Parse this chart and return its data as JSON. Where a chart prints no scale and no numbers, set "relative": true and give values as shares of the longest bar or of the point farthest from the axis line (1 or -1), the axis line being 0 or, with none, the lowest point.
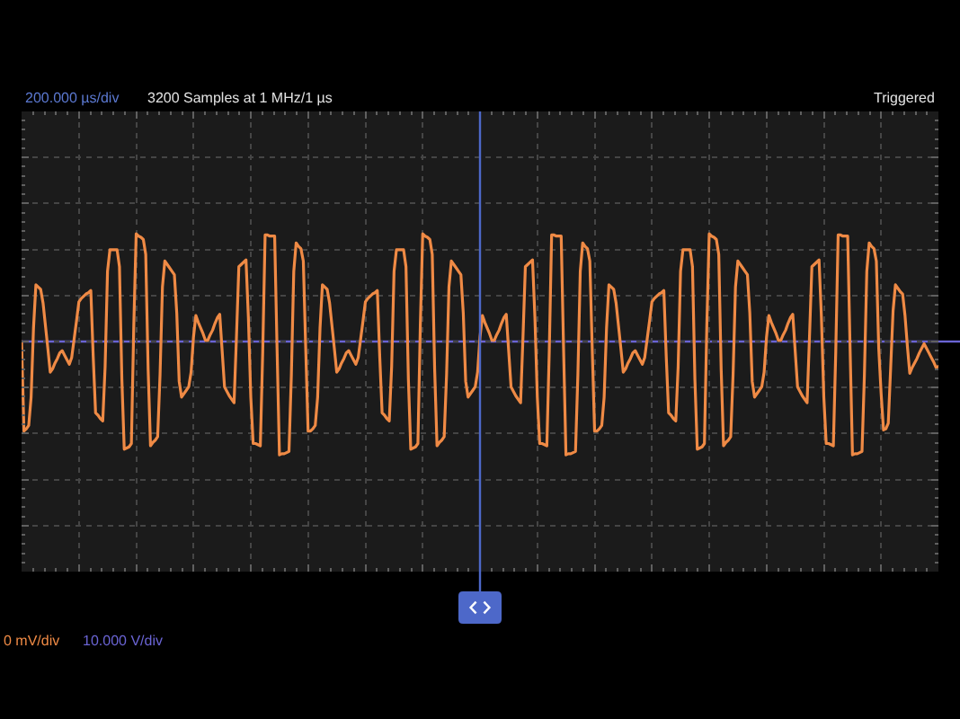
{
  "chart_data": {
    "type": "line",
    "categories": [
      null,
      null,
      null,
      null,
      null,
      null,
      null,
      null,
      null,
      null,
      null,
      null,
      null,
      null,
      null,
      null,
      null,
      null,
      null,
      null,
      null,
      null,
      null,
      null,
      null,
      null,
      null,
      null,
      null,
      null,
      null,
      null,
      null,
      null,
      null,
      null,
      null,
      null,
      null,
      null,
      null,
      null,
      null,
      null,
      null,
      null,
      null,
      null,
      null,
      null,
      null,
      null,
      null,
      null,
      null,
      null,
      null,
      null,
      null,
      null,
      null,
      null,
      null,
      null,
      null,
      null,
      null,
      null,
      null,
      null,
      null,
      null,
      null,
      null,
      null,
      null,
      null,
      null,
      null,
      null,
      null,
      null,
      null,
      null,
      null,
      null,
      null,
      null,
      null,
      null,
      null,
      null,
      null,
      null,
      null,
      null,
      null,
      null,
      null,
      null,
      null,
      null,
      null,
      null,
      null,
      null,
      null,
      null,
      null,
      null,
      null,
      null,
      null,
      null,
      null,
      null,
      null,
      null,
      null,
      null,
      null,
      null,
      null,
      null,
      null,
      null,
      null,
      null,
      null,
      null,
      null,
      null,
      null,
      null,
      null,
      null,
      null,
      null,
      null,
      null,
      null,
      null,
      null,
      null,
      null,
      null,
      null,
      null,
      null,
      null,
      null,
      null,
      null,
      null,
      null,
      null,
      null,
      null,
      null,
      null,
      null,
      null,
      null,
      null,
      null,
      null,
      null,
      null,
      null,
      null,
      null,
      null,
      null,
      null,
      null,
      null,
      null,
      null,
      null,
      null,
      null,
      null,
      null,
      null,
      null,
      null,
      null,
      null,
      null,
      null,
      null,
      null,
      null,
      null,
      null,
      null,
      null,
      null,
      null,
      null,
      null,
      null,
      null,
      null,
      null,
      null,
      null,
      null,
      null,
      null,
      null,
      null,
      null,
      null,
      null,
      null,
      null,
      null,
      null,
      null,
      null,
      null,
      null,
      null,
      null,
      null,
      null,
      null,
      null,
      null,
      null,
      null,
      null,
      null,
      null,
      null,
      null,
      null,
      null,
      null,
      null,
      null,
      null,
      null,
      null,
      null,
      null,
      null,
      null,
      null,
      null,
      null,
      null,
      null,
      null,
      null,
      null,
      null,
      null,
      null,
      null,
      null,
      null,
      null,
      null,
      null,
      null,
      null,
      null,
      null,
      null,
      null,
      null,
      null,
      null,
      null,
      null,
      null,
      null,
      null,
      null,
      null,
      null,
      null,
      null,
      null,
      null,
      null,
      null,
      null,
      null,
      null,
      null,
      null,
      null,
      null,
      null,
      null,
      null,
      null,
      null,
      null,
      null,
      null,
      null,
      null,
      null,
      null,
      null,
      null,
      null,
      null,
      null,
      null,
      null,
      null,
      null,
      null,
      null,
      null,
      null,
      null,
      null,
      null,
      null,
      null,
      null,
      null,
      null,
      null,
      null,
      null,
      null,
      null,
      null,
      null,
      null,
      null,
      null,
      null,
      null,
      null,
      null,
      null,
      null,
      null,
      null,
      null,
      null,
      null,
      null,
      null,
      null,
      null,
      null,
      null,
      null,
      null,
      null,
      null,
      null,
      null,
      null,
      null,
      null,
      null,
      null,
      null,
      null,
      null,
      null,
      null,
      null,
      null,
      null,
      null,
      null,
      null,
      null,
      null,
      null,
      null,
      null,
      null,
      null
    ],
    "series": [
      {
        "color": "#ef8a45",
        "values": [
          0.0,
          -0.79,
          -0.77,
          -0.74,
          -0.49,
          0.12,
          0.5,
          0.48,
          0.46,
          0.34,
          0.14,
          -0.06,
          -0.27,
          -0.24,
          -0.19,
          -0.15,
          -0.1,
          -0.08,
          -0.12,
          -0.16,
          -0.2,
          -0.14,
          0.02,
          0.18,
          0.35,
          0.38,
          0.4,
          0.42,
          0.43,
          0.45,
          -0.13,
          -0.63,
          -0.65,
          -0.68,
          -0.7,
          -0.22,
          0.62,
          0.81,
          0.81,
          0.81,
          0.81,
          0.66,
          -0.33,
          -0.95,
          -0.94,
          -0.93,
          -0.9,
          0.14,
          0.95,
          0.93,
          0.92,
          0.9,
          0.77,
          -0.24,
          -0.92,
          -0.89,
          -0.87,
          -0.84,
          -0.29,
          0.48,
          0.71,
          0.68,
          0.65,
          0.62,
          0.59,
          0.25,
          -0.35,
          -0.49,
          -0.46,
          -0.43,
          -0.4,
          -0.27,
          0.04,
          0.23,
          0.17,
          0.12,
          0.07,
          0.01,
          0.01,
          0.06,
          0.1,
          0.16,
          0.21,
          0.24,
          -0.08,
          -0.4,
          -0.44,
          -0.48,
          -0.51,
          -0.54,
          0.04,
          0.66,
          0.68,
          0.7,
          0.72,
          0.21,
          -0.49,
          -0.9,
          -0.9,
          -0.91,
          -0.92,
          -0.09,
          0.94,
          0.94,
          0.93,
          0.93,
          0.93,
          -0.06,
          -1.0,
          -0.99,
          -0.99,
          -0.98,
          -0.97,
          -0.29,
          0.62,
          0.87,
          0.84,
          0.82,
          0.71,
          -0.06,
          -0.79,
          -0.79,
          -0.77,
          -0.74,
          -0.49,
          0.12,
          0.5,
          0.48,
          0.46,
          0.34,
          0.14,
          -0.06,
          -0.27,
          -0.24,
          -0.19,
          -0.15,
          -0.1,
          -0.08,
          -0.12,
          -0.16,
          -0.2,
          -0.14,
          0.02,
          0.18,
          0.35,
          0.38,
          0.4,
          0.42,
          0.43,
          0.45,
          -0.13,
          -0.63,
          -0.65,
          -0.68,
          -0.7,
          -0.22,
          0.62,
          0.81,
          0.81,
          0.81,
          0.81,
          0.66,
          -0.33,
          -0.95,
          -0.94,
          -0.93,
          -0.9,
          0.14,
          0.95,
          0.93,
          0.92,
          0.9,
          0.77,
          -0.24,
          -0.92,
          -0.89,
          -0.87,
          -0.84,
          -0.29,
          0.48,
          0.71,
          0.68,
          0.65,
          0.62,
          0.59,
          0.25,
          -0.35,
          -0.49,
          -0.46,
          -0.43,
          -0.4,
          -0.27,
          0.04,
          0.23,
          0.17,
          0.12,
          0.07,
          0.01,
          0.01,
          0.06,
          0.1,
          0.16,
          0.21,
          0.24,
          -0.08,
          -0.4,
          -0.44,
          -0.48,
          -0.51,
          -0.54,
          0.04,
          0.66,
          0.68,
          0.7,
          0.72,
          0.21,
          -0.49,
          -0.9,
          -0.9,
          -0.91,
          -0.92,
          -0.09,
          0.94,
          0.94,
          0.93,
          0.93,
          0.93,
          -0.06,
          -1.0,
          -0.99,
          -0.99,
          -0.98,
          -0.97,
          -0.29,
          0.62,
          0.87,
          0.84,
          0.82,
          0.71,
          -0.06,
          -0.79,
          -0.79,
          -0.77,
          -0.74,
          -0.49,
          0.12,
          0.5,
          0.48,
          0.46,
          0.34,
          0.14,
          -0.06,
          -0.27,
          -0.24,
          -0.19,
          -0.15,
          -0.1,
          -0.08,
          -0.12,
          -0.16,
          -0.2,
          -0.14,
          0.02,
          0.18,
          0.35,
          0.38,
          0.4,
          0.42,
          0.43,
          0.45,
          -0.13,
          -0.63,
          -0.65,
          -0.68,
          -0.7,
          -0.22,
          0.62,
          0.81,
          0.81,
          0.81,
          0.81,
          0.66,
          -0.33,
          -0.95,
          -0.94,
          -0.93,
          -0.9,
          0.14,
          0.95,
          0.93,
          0.92,
          0.9,
          0.77,
          -0.24,
          -0.92,
          -0.89,
          -0.87,
          -0.84,
          -0.29,
          0.48,
          0.71,
          0.68,
          0.65,
          0.62,
          0.59,
          0.25,
          -0.35,
          -0.49,
          -0.46,
          -0.43,
          -0.4,
          -0.27,
          0.04,
          0.23,
          0.17,
          0.12,
          0.07,
          0.01,
          0.01,
          0.06,
          0.1,
          0.16,
          0.21,
          0.24,
          -0.08,
          -0.4,
          -0.44,
          -0.48,
          -0.51,
          -0.54,
          0.04,
          0.66,
          0.68,
          0.7,
          0.72,
          0.21,
          -0.49,
          -0.9,
          -0.9,
          -0.91,
          -0.92,
          -0.09,
          0.94,
          0.94,
          0.93,
          0.93,
          0.93,
          -0.06,
          -1.0,
          -0.99,
          -0.99,
          -0.98,
          -0.97,
          -0.29,
          0.62,
          0.87,
          0.84,
          0.82,
          0.71,
          -0.06,
          -0.46,
          -0.78,
          -0.77,
          -0.72,
          -0.23,
          0.27,
          0.5,
          0.47,
          0.44,
          0.42,
          0.23,
          -0.04,
          -0.28,
          -0.23,
          -0.19,
          -0.15,
          -0.1,
          -0.06,
          -0.02,
          -0.06,
          -0.1,
          -0.14,
          -0.18,
          -0.23,
          -0.22
        ]
      }
    ],
    "relative": true,
    "grid": true,
    "ref_lines": [
      {
        "axis": "y",
        "value": 0,
        "color": "#6a64d4"
      }
    ],
    "annotations": [
      "200.000 µs/div",
      "3200 Samples at 1 MHz/1 µs",
      "Triggered",
      "0 mV/div",
      "10.000 V/div"
    ]
  }
}
